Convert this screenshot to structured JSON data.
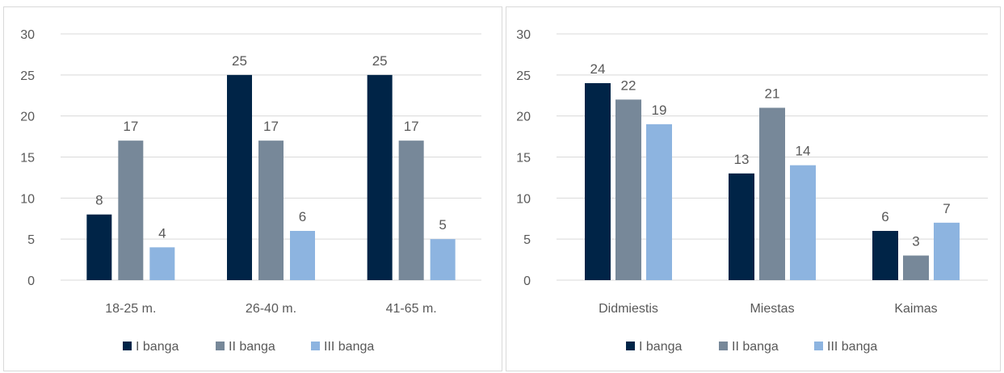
{
  "colors": {
    "I": "#002447",
    "II": "#778899",
    "III": "#8db4e0"
  },
  "chart_data": [
    {
      "type": "bar",
      "categories": [
        "18-25 m.",
        "26-40 m.",
        "41-65 m."
      ],
      "series": [
        {
          "name": "I banga",
          "values": [
            8,
            25,
            25
          ]
        },
        {
          "name": "II banga",
          "values": [
            17,
            17,
            17
          ]
        },
        {
          "name": "III banga",
          "values": [
            4,
            6,
            5
          ]
        }
      ],
      "ylim": [
        0,
        30
      ],
      "yticks": [
        0,
        5,
        10,
        15,
        20,
        25,
        30
      ],
      "grid": true,
      "legend": "bottom"
    },
    {
      "type": "bar",
      "categories": [
        "Didmiestis",
        "Miestas",
        "Kaimas"
      ],
      "series": [
        {
          "name": "I banga",
          "values": [
            24,
            13,
            6
          ]
        },
        {
          "name": "II banga",
          "values": [
            22,
            21,
            3
          ]
        },
        {
          "name": "III banga",
          "values": [
            19,
            14,
            7
          ]
        }
      ],
      "ylim": [
        0,
        30
      ],
      "yticks": [
        0,
        5,
        10,
        15,
        20,
        25,
        30
      ],
      "grid": true,
      "legend": "bottom"
    }
  ]
}
